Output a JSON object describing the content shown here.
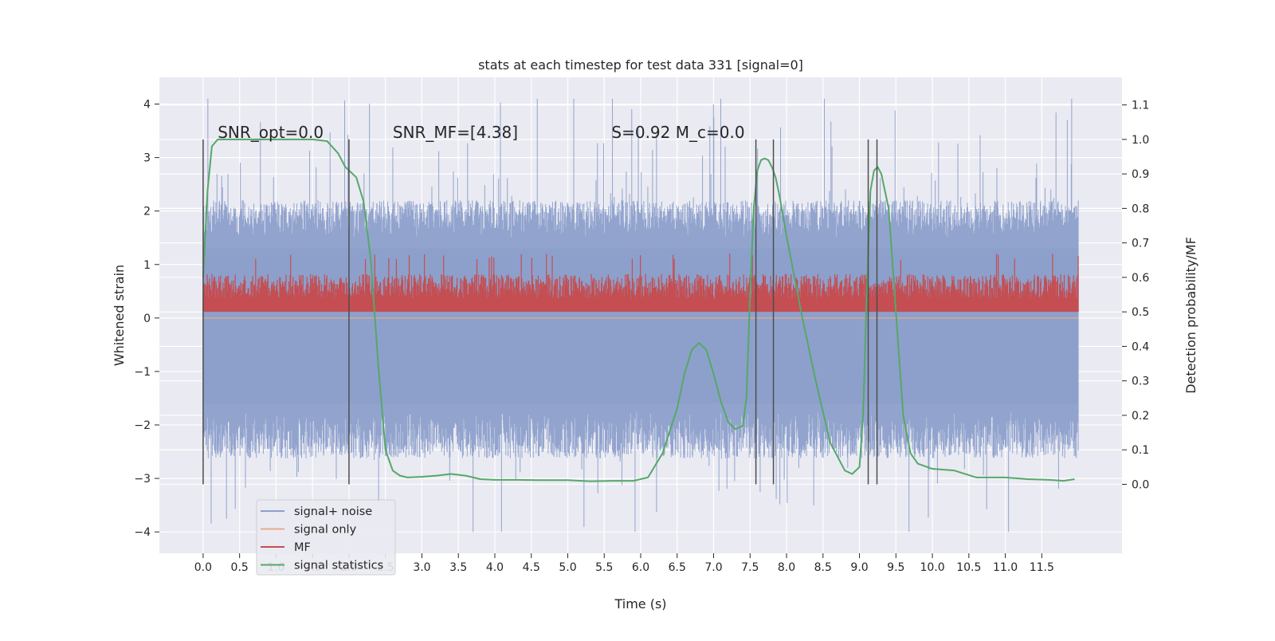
{
  "chart_data": {
    "type": "line",
    "title": "stats at each timestep for test data 331 [signal=0]",
    "xlabel": "Time (s)",
    "ylabel_left": "Whitened strain",
    "ylabel_right": "Detection probability/MF",
    "xlim": [
      -0.6,
      12.6
    ],
    "ylim_left": [
      -4.4,
      4.5
    ],
    "ylim_right": [
      -0.2,
      1.18
    ],
    "x_ticks": [
      0.0,
      0.5,
      1.0,
      1.5,
      2.0,
      2.5,
      3.0,
      3.5,
      4.0,
      4.5,
      5.0,
      5.5,
      6.0,
      6.5,
      7.0,
      7.5,
      8.0,
      8.5,
      9.0,
      9.5,
      10.0,
      10.5,
      11.0,
      11.5
    ],
    "x_tick_labels": [
      "0.0",
      "0.5",
      "1.0",
      "1.5",
      "2.0",
      "2.5",
      "3.0",
      "3.5",
      "4.0",
      "4.5",
      "5.0",
      "5.5",
      "6.0",
      "6.5",
      "7.0",
      "7.5",
      "8.0",
      "8.5",
      "9.0",
      "9.5",
      "10.0",
      "10.5",
      "11.0",
      "11.5"
    ],
    "y_left_ticks": [
      -4,
      -3,
      -2,
      -1,
      0,
      1,
      2,
      3,
      4
    ],
    "y_left_tick_labels": [
      "−4",
      "−3",
      "−2",
      "−1",
      "0",
      "1",
      "2",
      "3",
      "4"
    ],
    "y_right_ticks": [
      0.0,
      0.1,
      0.2,
      0.3,
      0.4,
      0.5,
      0.6,
      0.7,
      0.8,
      0.9,
      1.0,
      1.1
    ],
    "y_right_tick_labels": [
      "0.0",
      "0.1",
      "0.2",
      "0.3",
      "0.4",
      "0.5",
      "0.6",
      "0.7",
      "0.8",
      "0.9",
      "1.0",
      "1.1"
    ],
    "grid": true,
    "legend": {
      "placement": "lower-left",
      "entries": [
        {
          "label": "signal+ noise",
          "color": "#8da0cb"
        },
        {
          "label": "signal only",
          "color": "#e8a98c"
        },
        {
          "label": "MF",
          "color": "#c44e52"
        },
        {
          "label": "signal statistics",
          "color": "#55a868"
        }
      ]
    },
    "annotations": [
      {
        "text": "SNR_opt=0.0",
        "x": 0.2,
        "y_right": 1.0
      },
      {
        "text": "SNR_MF=[4.38]",
        "x": 2.6,
        "y_right": 1.0
      },
      {
        "text": "S=0.92   M_c=0.0",
        "x": 5.6,
        "y_right": 1.0
      }
    ],
    "series": [
      {
        "name": "signal+ noise",
        "axis": "left",
        "color": "#8da0cb",
        "x_range": [
          0.0,
          12.0
        ],
        "description_stat": {
          "typical_max": 2.0,
          "typical_min": -2.5,
          "peak_max": 4.1,
          "peak_min": -4.0
        }
      },
      {
        "name": "signal only",
        "axis": "left",
        "color": "#e8a98c",
        "x": [
          0.0,
          12.0
        ],
        "y": [
          0.0,
          0.0
        ]
      },
      {
        "name": "MF",
        "axis": "right",
        "color": "#c44e52",
        "x_range": [
          0.0,
          12.0
        ],
        "description_stat": {
          "base": 0.5,
          "typical_max": 0.61,
          "peak_max": 0.67
        }
      },
      {
        "name": "signal statistics",
        "axis": "right",
        "color": "#55a868",
        "x": [
          0.0,
          0.06,
          0.12,
          0.2,
          0.3,
          0.5,
          1.0,
          1.5,
          1.7,
          1.85,
          1.95,
          2.1,
          2.2,
          2.3,
          2.4,
          2.5,
          2.6,
          2.7,
          2.8,
          3.0,
          3.2,
          3.4,
          3.6,
          3.8,
          4.0,
          4.3,
          4.6,
          5.0,
          5.3,
          5.6,
          5.9,
          6.1,
          6.3,
          6.5,
          6.6,
          6.7,
          6.8,
          6.9,
          7.0,
          7.1,
          7.2,
          7.3,
          7.4,
          7.45,
          7.5,
          7.55,
          7.6,
          7.65,
          7.7,
          7.75,
          7.8,
          7.85,
          7.9,
          8.0,
          8.2,
          8.4,
          8.6,
          8.8,
          8.9,
          9.0,
          9.05,
          9.1,
          9.15,
          9.2,
          9.25,
          9.3,
          9.4,
          9.5,
          9.6,
          9.7,
          9.8,
          10.0,
          10.3,
          10.6,
          11.0,
          11.3,
          11.6,
          11.8,
          11.95
        ],
        "y": [
          0.6,
          0.85,
          0.98,
          1.0,
          1.0,
          1.0,
          1.0,
          1.0,
          0.995,
          0.96,
          0.92,
          0.89,
          0.82,
          0.65,
          0.35,
          0.1,
          0.04,
          0.025,
          0.02,
          0.022,
          0.025,
          0.03,
          0.025,
          0.015,
          0.013,
          0.013,
          0.012,
          0.012,
          0.009,
          0.01,
          0.01,
          0.02,
          0.09,
          0.22,
          0.32,
          0.39,
          0.41,
          0.39,
          0.32,
          0.24,
          0.18,
          0.16,
          0.17,
          0.25,
          0.55,
          0.8,
          0.91,
          0.94,
          0.945,
          0.94,
          0.92,
          0.89,
          0.84,
          0.72,
          0.5,
          0.3,
          0.12,
          0.04,
          0.03,
          0.05,
          0.2,
          0.55,
          0.85,
          0.91,
          0.92,
          0.9,
          0.8,
          0.5,
          0.2,
          0.09,
          0.06,
          0.045,
          0.04,
          0.02,
          0.02,
          0.015,
          0.013,
          0.01,
          0.015
        ]
      }
    ],
    "vertical_markers_x": [
      0.0,
      2.0,
      7.58,
      7.82,
      9.12,
      9.24
    ]
  }
}
